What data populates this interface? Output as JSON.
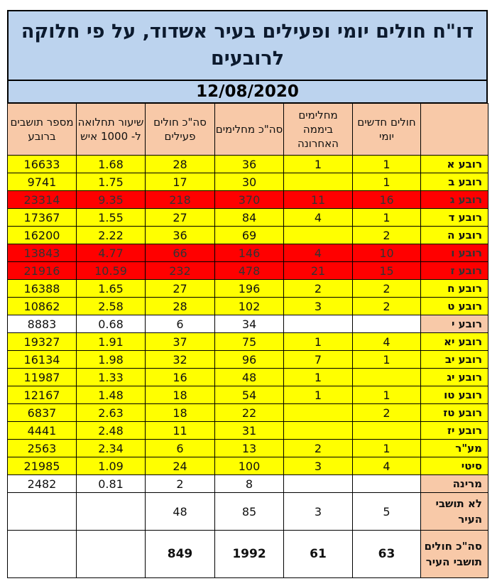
{
  "title": "דו\"ח חולים יומי ופעילים בעיר אשדוד, על פי חלוקה לרובעים",
  "date": "12/08/2020",
  "headers": {
    "residents": "מספר תושבים ברובע",
    "rate": "שיעור תחלואה ל- 1000 איש",
    "active": "סה\"כ חולים פעילים",
    "recovered": "סה\"כ מחלימים",
    "recovered_24h": "מחלימים ביממה האחרונה",
    "new_daily": "חולים חדשים יומי",
    "name": ""
  },
  "rows": [
    {
      "name": "רובע א",
      "new": "1",
      "rec24": "1",
      "rec": "36",
      "active": "28",
      "rate": "1.68",
      "res": "16633",
      "style": "yellow"
    },
    {
      "name": "רובע ב",
      "new": "1",
      "rec24": "",
      "rec": "30",
      "active": "17",
      "rate": "1.75",
      "res": "9741",
      "style": "yellow"
    },
    {
      "name": "רובע ג",
      "new": "16",
      "rec24": "11",
      "rec": "370",
      "active": "218",
      "rate": "9.35",
      "res": "23314",
      "style": "red"
    },
    {
      "name": "רובע ד",
      "new": "1",
      "rec24": "4",
      "rec": "84",
      "active": "27",
      "rate": "1.55",
      "res": "17367",
      "style": "yellow"
    },
    {
      "name": "רובע ה",
      "new": "2",
      "rec24": "",
      "rec": "69",
      "active": "36",
      "rate": "2.22",
      "res": "16200",
      "style": "yellow"
    },
    {
      "name": "רובע ו",
      "new": "10",
      "rec24": "4",
      "rec": "146",
      "active": "66",
      "rate": "4.77",
      "res": "13843",
      "style": "red"
    },
    {
      "name": "רובע ז",
      "new": "15",
      "rec24": "21",
      "rec": "478",
      "active": "232",
      "rate": "10.59",
      "res": "21916",
      "style": "red"
    },
    {
      "name": "רובע ח",
      "new": "2",
      "rec24": "2",
      "rec": "196",
      "active": "27",
      "rate": "1.65",
      "res": "16388",
      "style": "yellow"
    },
    {
      "name": "רובע ט",
      "new": "2",
      "rec24": "3",
      "rec": "102",
      "active": "28",
      "rate": "2.58",
      "res": "10862",
      "style": "yellow"
    },
    {
      "name": "רובע י",
      "new": "",
      "rec24": "",
      "rec": "34",
      "active": "6",
      "rate": "0.68",
      "res": "8883",
      "style": "white"
    },
    {
      "name": "רובע יא",
      "new": "4",
      "rec24": "1",
      "rec": "75",
      "active": "37",
      "rate": "1.91",
      "res": "19327",
      "style": "yellow"
    },
    {
      "name": "רובע יב",
      "new": "1",
      "rec24": "7",
      "rec": "96",
      "active": "32",
      "rate": "1.98",
      "res": "16134",
      "style": "yellow"
    },
    {
      "name": "רובע יג",
      "new": "",
      "rec24": "1",
      "rec": "48",
      "active": "16",
      "rate": "1.33",
      "res": "11987",
      "style": "yellow"
    },
    {
      "name": "רובע טו",
      "new": "1",
      "rec24": "1",
      "rec": "54",
      "active": "18",
      "rate": "1.48",
      "res": "12167",
      "style": "yellow"
    },
    {
      "name": "רובע טז",
      "new": "2",
      "rec24": "",
      "rec": "22",
      "active": "18",
      "rate": "2.63",
      "res": "6837",
      "style": "yellow"
    },
    {
      "name": "רובע יז",
      "new": "",
      "rec24": "",
      "rec": "31",
      "active": "11",
      "rate": "2.48",
      "res": "4441",
      "style": "yellow"
    },
    {
      "name": "מע\"ר",
      "new": "1",
      "rec24": "2",
      "rec": "13",
      "active": "6",
      "rate": "2.34",
      "res": "2563",
      "style": "yellow"
    },
    {
      "name": "סיטי",
      "new": "4",
      "rec24": "3",
      "rec": "100",
      "active": "24",
      "rate": "1.09",
      "res": "21985",
      "style": "yellow"
    },
    {
      "name": "מרינה",
      "new": "",
      "rec24": "",
      "rec": "8",
      "active": "2",
      "rate": "0.81",
      "res": "2482",
      "style": "white"
    }
  ],
  "non_residents": {
    "name": "לא תושבי העיר",
    "new": "5",
    "rec24": "3",
    "rec": "85",
    "active": "48",
    "rate": "",
    "res": ""
  },
  "totals": {
    "name": "סה\"כ חולים תושבי העיר",
    "new": "63",
    "rec24": "61",
    "rec": "1992",
    "active": "849",
    "rate": "",
    "res": ""
  },
  "colors": {
    "title_bg": "#bcd3ee",
    "header_bg": "#f8c9a8",
    "yellow": "#ffff00",
    "red": "#ff0000"
  }
}
